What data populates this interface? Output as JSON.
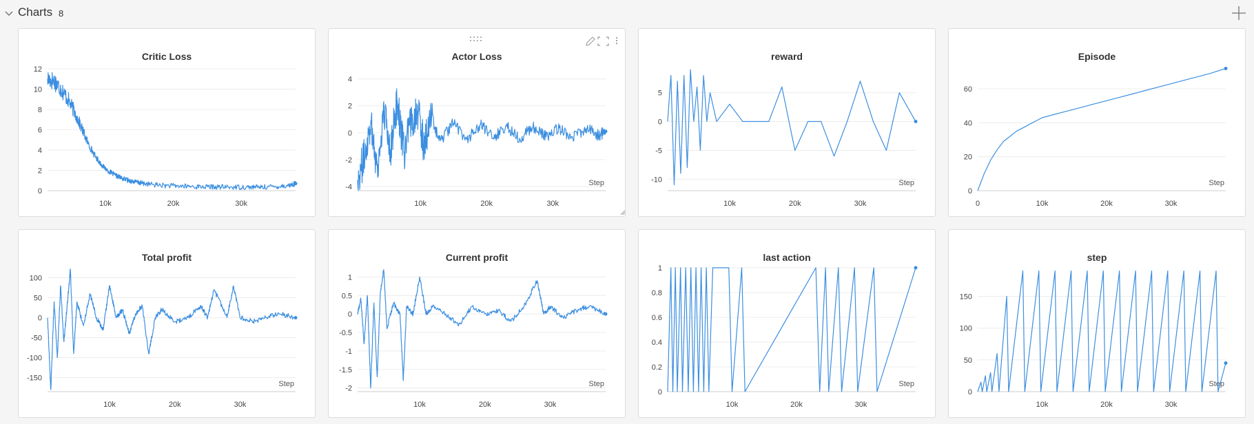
{
  "section": {
    "title": "Charts",
    "count": "8"
  },
  "icons": {
    "collapse": "chevron-down-icon",
    "add": "plus-icon",
    "drag": "drag-handle-icon",
    "edit": "pencil-icon",
    "fullscreen": "fullscreen-icon",
    "menu": "more-vertical-icon",
    "resize": "resize-corner-icon"
  },
  "line_color": "#3b8ee0",
  "chart_data": [
    {
      "id": "critic-loss",
      "type": "line",
      "title": "Critic Loss",
      "xlabel": "",
      "ylabel": "",
      "xlim": [
        1500,
        38000
      ],
      "ylim": [
        0,
        12.2
      ],
      "yticks": [
        0,
        2,
        4,
        6,
        8,
        10,
        12
      ],
      "yticklabels": [
        "0",
        "2",
        "4",
        "6",
        "8",
        "10",
        "12"
      ],
      "xticks": [
        10000,
        20000,
        30000
      ],
      "xticklabels": [
        "10k",
        "20k",
        "30k"
      ],
      "x": [
        1500,
        2500,
        3500,
        4500,
        5500,
        6500,
        7500,
        8500,
        9500,
        10500,
        11500,
        12500,
        13500,
        14500,
        15500,
        17000,
        19000,
        21000,
        23000,
        25000,
        27000,
        29000,
        31000,
        33000,
        35000,
        37000,
        38000
      ],
      "series": [
        {
          "values": [
            11,
            10.8,
            10,
            9,
            7.7,
            6.2,
            4.6,
            3.4,
            2.5,
            1.9,
            1.5,
            1.2,
            1.0,
            0.85,
            0.72,
            0.6,
            0.5,
            0.45,
            0.4,
            0.38,
            0.36,
            0.35,
            0.35,
            0.36,
            0.4,
            0.5,
            0.7
          ]
        }
      ]
    },
    {
      "id": "actor-loss",
      "type": "line",
      "title": "Actor Loss",
      "xlabel": "Step",
      "ylabel": "",
      "xlim": [
        500,
        38000
      ],
      "ylim": [
        -4.3,
        4.9
      ],
      "yticks": [
        -4,
        -2,
        0,
        2,
        4
      ],
      "yticklabels": [
        "-4",
        "-2",
        "0",
        "2",
        "4"
      ],
      "xticks": [
        10000,
        20000,
        30000
      ],
      "xticklabels": [
        "10k",
        "20k",
        "30k"
      ],
      "x": [
        500,
        1500,
        2500,
        3500,
        4500,
        5500,
        6500,
        7500,
        8500,
        9500,
        10500,
        11500,
        13000,
        15000,
        17000,
        19000,
        21000,
        23000,
        25000,
        27000,
        29000,
        31000,
        33000,
        35000,
        37000,
        38000
      ],
      "series": [
        {
          "values": [
            -3.5,
            -1.8,
            0.9,
            -2.8,
            1.6,
            -1.2,
            2.4,
            -1.5,
            0.6,
            1.9,
            -0.9,
            1.1,
            -0.6,
            0.7,
            -0.5,
            0.6,
            -0.4,
            0.5,
            -0.4,
            0.4,
            -0.3,
            0.35,
            -0.3,
            0.3,
            -0.2,
            0.1
          ]
        }
      ]
    },
    {
      "id": "reward",
      "type": "line",
      "title": "reward",
      "xlabel": "Step",
      "ylabel": "",
      "xlim": [
        500,
        38500
      ],
      "ylim": [
        -12,
        9.5
      ],
      "yticks": [
        -10,
        -5,
        0,
        5
      ],
      "yticklabels": [
        "-10",
        "-5",
        "0",
        "5"
      ],
      "xticks": [
        10000,
        20000,
        30000
      ],
      "xticklabels": [
        "10k",
        "20k",
        "30k"
      ],
      "x": [
        500,
        1000,
        1500,
        2000,
        2500,
        3000,
        3500,
        4000,
        4500,
        5000,
        5500,
        6000,
        6500,
        7000,
        8000,
        10000,
        12000,
        14000,
        16000,
        18000,
        20000,
        22000,
        24000,
        26000,
        28000,
        30000,
        32000,
        34000,
        36000,
        38500
      ],
      "series": [
        {
          "values": [
            0,
            8,
            -11,
            7,
            -9,
            8,
            -8,
            9,
            0,
            6,
            -5,
            8,
            0,
            5,
            0,
            3,
            0,
            0,
            0,
            6,
            -5,
            0,
            0,
            -6,
            0,
            7,
            0,
            -5,
            5,
            0
          ]
        }
      ]
    },
    {
      "id": "episode",
      "type": "line",
      "title": "Episode",
      "xlabel": "Step",
      "ylabel": "",
      "xlim": [
        0,
        38500
      ],
      "ylim": [
        0,
        73
      ],
      "yticks": [
        0,
        20,
        40,
        60
      ],
      "yticklabels": [
        "0",
        "20",
        "40",
        "60"
      ],
      "xticks": [
        0,
        10000,
        20000,
        30000
      ],
      "xticklabels": [
        "0",
        "10k",
        "20k",
        "30k"
      ],
      "x": [
        0,
        1000,
        2000,
        3000,
        4000,
        5000,
        6000,
        7000,
        8000,
        9000,
        10000,
        12000,
        14000,
        16000,
        18000,
        20000,
        22000,
        24000,
        26000,
        28000,
        30000,
        32000,
        34000,
        36000,
        38500
      ],
      "series": [
        {
          "values": [
            0,
            10,
            18,
            24,
            29,
            32,
            35,
            37,
            39,
            41,
            43,
            45,
            47,
            49,
            51,
            53,
            55,
            57,
            59,
            61,
            63,
            65,
            67,
            69,
            72
          ]
        }
      ]
    },
    {
      "id": "total-profit",
      "type": "line",
      "title": "Total profit",
      "xlabel": "Step",
      "ylabel": "",
      "xlim": [
        500,
        38500
      ],
      "ylim": [
        -185,
        125
      ],
      "yticks": [
        -150,
        -100,
        -50,
        0,
        50,
        100
      ],
      "yticklabels": [
        "-150",
        "-100",
        "-50",
        "0",
        "50",
        "100"
      ],
      "xticks": [
        10000,
        20000,
        30000
      ],
      "xticklabels": [
        "10k",
        "20k",
        "30k"
      ],
      "x": [
        500,
        1000,
        1500,
        2000,
        2500,
        3000,
        3500,
        4000,
        4500,
        5000,
        6000,
        7000,
        8000,
        9000,
        10000,
        11000,
        12000,
        13000,
        14000,
        15000,
        16000,
        17000,
        18000,
        20000,
        22000,
        24000,
        25000,
        26000,
        28000,
        29000,
        30000,
        32000,
        34000,
        36000,
        38500
      ],
      "series": [
        {
          "values": [
            0,
            -180,
            40,
            -100,
            80,
            -60,
            30,
            120,
            -90,
            40,
            -20,
            60,
            0,
            -30,
            80,
            0,
            20,
            -40,
            10,
            30,
            -90,
            0,
            20,
            -10,
            0,
            30,
            0,
            70,
            0,
            80,
            0,
            -10,
            0,
            10,
            0
          ]
        }
      ]
    },
    {
      "id": "current-profit",
      "type": "line",
      "title": "Current profit",
      "xlabel": "Step",
      "ylabel": "",
      "xlim": [
        500,
        38500
      ],
      "ylim": [
        -2.1,
        1.25
      ],
      "yticks": [
        -2,
        -1.5,
        -1,
        -0.5,
        0,
        0.5,
        1
      ],
      "yticklabels": [
        "-2",
        "-1.5",
        "-1",
        "-0.5",
        "0",
        "0.5",
        "1"
      ],
      "xticks": [
        10000,
        20000,
        30000
      ],
      "xticklabels": [
        "10k",
        "20k",
        "30k"
      ],
      "x": [
        500,
        1000,
        1500,
        2000,
        2500,
        3000,
        3500,
        4000,
        4500,
        5000,
        6000,
        7000,
        7500,
        8000,
        9000,
        10000,
        11000,
        12000,
        14000,
        16000,
        18000,
        20000,
        22000,
        24000,
        26000,
        28000,
        29000,
        30000,
        32000,
        34000,
        36000,
        38500
      ],
      "series": [
        {
          "values": [
            0,
            0.4,
            -0.8,
            0.5,
            -2,
            0.3,
            -1.7,
            0.6,
            1.2,
            -0.4,
            0.3,
            0,
            -1.8,
            0.2,
            0,
            1,
            0,
            0.2,
            0,
            -0.3,
            0.2,
            0,
            0.1,
            -0.2,
            0.2,
            0.9,
            0,
            0.2,
            -0.1,
            0.1,
            0.2,
            0
          ]
        }
      ]
    },
    {
      "id": "last-action",
      "type": "line",
      "title": "last action",
      "xlabel": "Step",
      "ylabel": "",
      "xlim": [
        0,
        38500
      ],
      "ylim": [
        0,
        1
      ],
      "yticks": [
        0,
        0.2,
        0.4,
        0.6,
        0.8,
        1
      ],
      "yticklabels": [
        "0",
        "0.2",
        "0.4",
        "0.6",
        "0.8",
        "1"
      ],
      "xticks": [
        10000,
        20000,
        30000
      ],
      "xticklabels": [
        "10k",
        "20k",
        "30k"
      ],
      "x": [
        0,
        500,
        800,
        1200,
        1500,
        2000,
        2300,
        2800,
        3200,
        3600,
        4000,
        4400,
        4800,
        5200,
        5600,
        6000,
        6400,
        7000,
        9500,
        10000,
        11500,
        12000,
        23000,
        23600,
        24500,
        25000,
        26500,
        27000,
        29000,
        29500,
        32000,
        32500,
        38500
      ],
      "series": [
        {
          "values": [
            0,
            1,
            0,
            1,
            0,
            1,
            0,
            1,
            0,
            1,
            0,
            1,
            0,
            1,
            0,
            1,
            0,
            1,
            1,
            0,
            1,
            0,
            1,
            0,
            1,
            0,
            1,
            0,
            1,
            0,
            1,
            0,
            1
          ]
        }
      ]
    },
    {
      "id": "step",
      "type": "line",
      "title": "step",
      "xlabel": "Step",
      "ylabel": "",
      "xlim": [
        0,
        38500
      ],
      "ylim": [
        0,
        195
      ],
      "yticks": [
        0,
        50,
        100,
        150
      ],
      "yticklabels": [
        "0",
        "50",
        "100",
        "150"
      ],
      "xticks": [
        10000,
        20000,
        30000
      ],
      "xticklabels": [
        "10k",
        "20k",
        "30k"
      ],
      "x": [
        0,
        500,
        700,
        1200,
        1400,
        2000,
        2200,
        3000,
        3300,
        4500,
        4800,
        7000,
        7300,
        9500,
        9800,
        12000,
        12300,
        14500,
        14800,
        17000,
        17300,
        19500,
        19800,
        22000,
        22300,
        24500,
        24800,
        27000,
        27300,
        29500,
        29800,
        32000,
        32300,
        34500,
        34800,
        37000,
        37300,
        38500
      ],
      "series": [
        {
          "values": [
            0,
            15,
            0,
            25,
            0,
            30,
            0,
            60,
            0,
            150,
            0,
            190,
            0,
            190,
            0,
            190,
            0,
            190,
            0,
            190,
            0,
            190,
            0,
            190,
            0,
            190,
            0,
            190,
            0,
            190,
            0,
            190,
            0,
            190,
            0,
            190,
            0,
            45
          ]
        }
      ]
    }
  ]
}
